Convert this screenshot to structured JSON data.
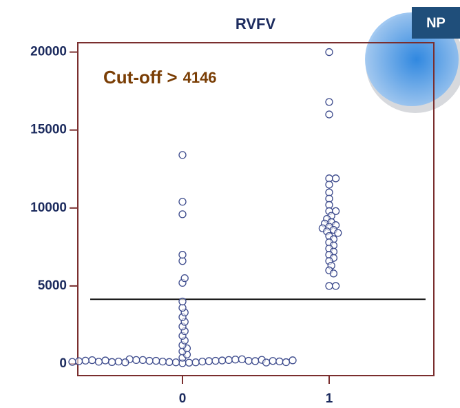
{
  "badge": "NP",
  "chart_data": {
    "type": "strip",
    "title": "RVFV",
    "categories": [
      "0",
      "1"
    ],
    "values": [
      [
        50,
        80,
        100,
        100,
        120,
        150,
        150,
        180,
        200,
        200,
        200,
        220,
        250,
        250,
        250,
        280,
        300,
        300,
        100,
        150,
        200,
        120,
        180,
        220,
        260,
        90,
        140,
        190,
        240,
        160,
        210,
        110,
        170,
        230,
        130,
        400,
        600,
        800,
        1000,
        1200,
        1500,
        1800,
        2100,
        2400,
        2700,
        3000,
        3300,
        3600,
        4000,
        5200,
        5500,
        6600,
        7000,
        9600,
        10400,
        13400
      ],
      [
        20000,
        16800,
        16000,
        11900,
        11900,
        11500,
        11000,
        10600,
        10200,
        9800,
        9800,
        9500,
        9300,
        9100,
        9000,
        8900,
        8800,
        8700,
        8600,
        8500,
        8400,
        8200,
        8000,
        7800,
        7600,
        7400,
        7200,
        7000,
        6800,
        6600,
        6300,
        6000,
        5800,
        5000,
        5000
      ]
    ],
    "cutoff_label": "Cut-off >",
    "cutoff": 4146,
    "ylim": [
      -750,
      20600
    ],
    "yticks": [
      0,
      5000,
      10000,
      15000,
      20000
    ],
    "point_color": "#3c4a8c",
    "frame_color": "#7a2e2e"
  }
}
